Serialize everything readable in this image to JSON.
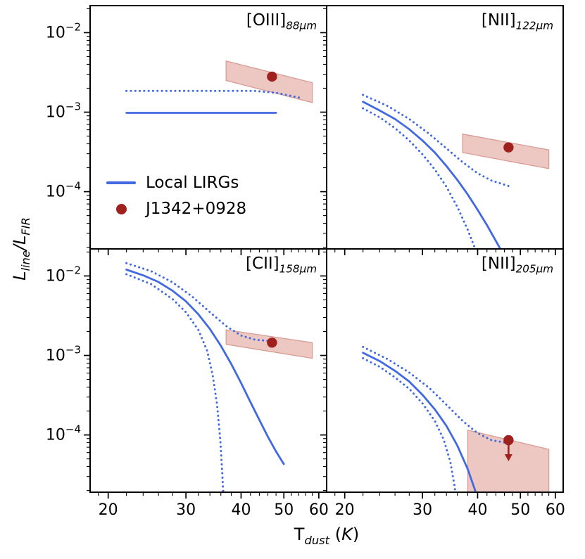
{
  "colors": {
    "line_blue": "#4169E1",
    "marker_red": "#9E211E",
    "band_fill": "#EDC8C3",
    "band_edge": "#D89C94",
    "axis": "#000000",
    "background": "#FFFFFF"
  },
  "axis_labels": {
    "y": {
      "l1": "L",
      "s1": "line",
      "l2": "/L",
      "s2": "FIR"
    },
    "x": {
      "l1": "T",
      "s1": "dust",
      "l2": " (",
      "l3": "K",
      "l4": ")"
    }
  },
  "legend": {
    "entries": [
      {
        "marker": "line",
        "label": "Local LIRGs"
      },
      {
        "marker": "dot",
        "label": "J1342+0928"
      }
    ]
  },
  "chart_data": {
    "type": "line",
    "title": "",
    "xlabel": "T_dust (K)",
    "ylabel": "L_line/L_FIR",
    "x_scale": "log",
    "y_scale": "log",
    "x_range": [
      18.2,
      62.5
    ],
    "y_log_range": [
      -4.72,
      -1.66
    ],
    "x_ticks": [
      20,
      30,
      40,
      50,
      60
    ],
    "x_minor_ticks": [
      19,
      22,
      24,
      26,
      28,
      32,
      34,
      36,
      38,
      42,
      44,
      46,
      48,
      52,
      54,
      56,
      58
    ],
    "y_ticks": [
      {
        "value": 0.01,
        "exp": "−2"
      },
      {
        "value": 0.001,
        "exp": "−3"
      },
      {
        "value": 0.0001,
        "exp": "−4"
      }
    ],
    "y_minor_ticks": [
      2e-05,
      3e-05,
      4e-05,
      5e-05,
      6e-05,
      7e-05,
      8e-05,
      9e-05,
      0.0002,
      0.0003,
      0.0004,
      0.0005,
      0.0006,
      0.0007,
      0.0008,
      0.0009,
      0.002,
      0.003,
      0.004,
      0.005,
      0.006,
      0.007,
      0.008,
      0.009,
      0.02
    ],
    "series_meta": {
      "solid": "Local LIRGs median relation",
      "dotted": "Local LIRGs scatter envelope",
      "point": "J1342+0928 measurement",
      "band": "J1342+0928 uncertainty region"
    },
    "panels": [
      {
        "name": "oiii88",
        "title": "[OIII] 88μm",
        "label": {
          "main": "[OIII]",
          "sub": "88μm"
        },
        "solid": [
          [
            22,
            0.00098
          ],
          [
            48,
            0.00098
          ]
        ],
        "dotted": [
          [
            [
              22,
              0.00185
            ],
            [
              43,
              0.00185
            ],
            [
              48,
              0.00175
            ],
            [
              55,
              0.0015
            ]
          ]
        ],
        "band": {
          "T": [
            37,
            58
          ],
          "top": [
            0.0044,
            0.00235
          ],
          "bottom": [
            0.0025,
            0.00132
          ]
        },
        "point": {
          "x": 47,
          "y": 0.0028,
          "upper_limit": false
        }
      },
      {
        "name": "nii122",
        "title": "[NII] 122μm",
        "label": {
          "main": "[NII]",
          "sub": "122μm"
        },
        "solid": [
          [
            22,
            0.00135
          ],
          [
            24,
            0.00105
          ],
          [
            26,
            0.00082
          ],
          [
            28,
            0.00061
          ],
          [
            30,
            0.00044
          ],
          [
            32,
            0.00031
          ],
          [
            34,
            0.00021
          ],
          [
            36,
            0.00014
          ],
          [
            38,
            9.2e-05
          ],
          [
            40,
            5.9e-05
          ],
          [
            42,
            3.8e-05
          ],
          [
            44,
            2.4e-05
          ],
          [
            46,
            1.55e-05
          ]
        ],
        "dotted": [
          [
            [
              22,
              0.00165
            ],
            [
              25,
              0.0012
            ],
            [
              28,
              0.00082
            ],
            [
              31,
              0.00054
            ],
            [
              34,
              0.00035
            ],
            [
              37,
              0.000235
            ],
            [
              40,
              0.00017
            ],
            [
              43,
              0.000138
            ],
            [
              47,
              0.000118
            ]
          ],
          [
            [
              22,
              0.00112
            ],
            [
              24,
              0.00086
            ],
            [
              26,
              0.00063
            ],
            [
              28,
              0.00044
            ],
            [
              30,
              0.000295
            ],
            [
              32,
              0.00019
            ],
            [
              34,
              0.000115
            ],
            [
              36,
              6.4e-05
            ],
            [
              38,
              3.3e-05
            ],
            [
              40,
              1.6e-05
            ]
          ]
        ],
        "band": {
          "T": [
            37,
            58
          ],
          "top": [
            0.00053,
            0.000335
          ],
          "bottom": [
            0.00031,
            0.000195
          ]
        },
        "point": {
          "x": 47,
          "y": 0.00036,
          "upper_limit": false
        }
      },
      {
        "name": "cii158",
        "title": "[CII] 158μm",
        "label": {
          "main": "[CII]",
          "sub": "158μm"
        },
        "solid": [
          [
            22,
            0.012
          ],
          [
            24,
            0.0102
          ],
          [
            26,
            0.0084
          ],
          [
            28,
            0.0065
          ],
          [
            30,
            0.0048
          ],
          [
            32,
            0.0033
          ],
          [
            34,
            0.00215
          ],
          [
            36,
            0.00132
          ],
          [
            38,
            0.00078
          ],
          [
            40,
            0.00045
          ],
          [
            42,
            0.00026
          ],
          [
            44,
            0.000155
          ],
          [
            46,
            9.5e-05
          ],
          [
            48,
            6.2e-05
          ],
          [
            50,
            4.3e-05
          ]
        ],
        "dotted": [
          [
            [
              22,
              0.0145
            ],
            [
              25,
              0.0115
            ],
            [
              28,
              0.0083
            ],
            [
              31,
              0.0055
            ],
            [
              34,
              0.0035
            ],
            [
              37,
              0.00235
            ],
            [
              40,
              0.00178
            ],
            [
              43,
              0.00158
            ],
            [
              47.5,
              0.0015
            ]
          ],
          [
            [
              22,
              0.0105
            ],
            [
              25,
              0.0079
            ],
            [
              28,
              0.0051
            ],
            [
              30,
              0.0035
            ],
            [
              32,
              0.0021
            ],
            [
              33.5,
              0.00115
            ],
            [
              34.5,
              0.00056
            ],
            [
              35.3,
              0.00024
            ],
            [
              35.9,
              8.5e-05
            ],
            [
              36.3,
              3e-05
            ],
            [
              36.5,
              1.6e-05
            ]
          ]
        ],
        "band": {
          "T": [
            37,
            58
          ],
          "top": [
            0.0021,
            0.00145
          ],
          "bottom": [
            0.00138,
            0.00092
          ]
        },
        "point": {
          "x": 47,
          "y": 0.00145,
          "upper_limit": false
        }
      },
      {
        "name": "nii205",
        "title": "[NII] 205μm",
        "label": {
          "main": "[NII]",
          "sub": "205μm"
        },
        "solid": [
          [
            22,
            0.00108
          ],
          [
            24,
            0.00085
          ],
          [
            26,
            0.00064
          ],
          [
            28,
            0.00047
          ],
          [
            30,
            0.00032
          ],
          [
            32,
            0.00021
          ],
          [
            34,
            0.00013
          ],
          [
            36,
            7.3e-05
          ],
          [
            38,
            3.7e-05
          ],
          [
            39.5,
            2e-05
          ],
          [
            40.2,
            1.3e-05
          ]
        ],
        "dotted": [
          [
            [
              22,
              0.00128
            ],
            [
              25,
              0.0009
            ],
            [
              28,
              0.00061
            ],
            [
              31,
              0.000395
            ],
            [
              34,
              0.00024
            ],
            [
              37,
              0.00015
            ],
            [
              40,
              0.000105
            ],
            [
              43,
              8.6e-05
            ],
            [
              47.5,
              7.8e-05
            ]
          ],
          [
            [
              22,
              0.00092
            ],
            [
              24,
              0.00072
            ],
            [
              26,
              0.00053
            ],
            [
              28,
              0.00038
            ],
            [
              30,
              0.00025
            ],
            [
              32,
              0.00015
            ],
            [
              33.5,
              8.8e-05
            ],
            [
              34.7,
              4.6e-05
            ],
            [
              35.5,
              2.2e-05
            ],
            [
              35.9,
              1.2e-05
            ]
          ]
        ],
        "band": {
          "T": [
            38,
            58
          ],
          "top": [
            0.000115,
            6.6e-05
          ],
          "bottom": [
            1.1e-05,
            1.1e-05
          ]
        },
        "point": {
          "x": 47,
          "y": 8.6e-05,
          "upper_limit": true
        }
      }
    ]
  }
}
